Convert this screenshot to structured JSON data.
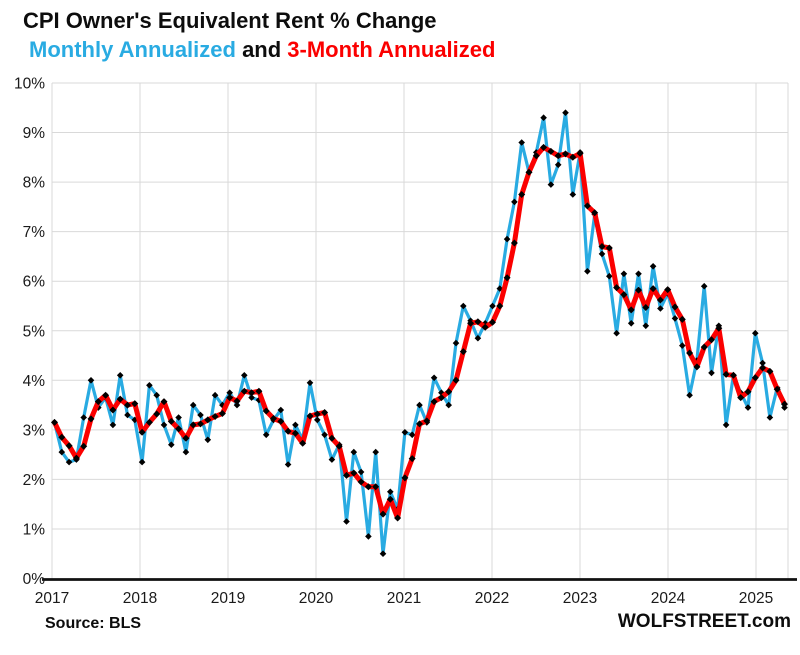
{
  "title": "CPI Owner's Equivalent Rent % Change",
  "subtitle": {
    "monthly_label": "Monthly Annualized",
    "connector": " and ",
    "three_month_label": "3-Month Annualized"
  },
  "footer": {
    "source": "Source: BLS",
    "watermark": "WOLFSTREET.com"
  },
  "colors": {
    "monthly_line": "#29ABE2",
    "three_month_line": "#FB0000",
    "marker": "#000000",
    "grid": "#D9D9D9",
    "axis": "#111111",
    "tick_text": "#1a1a1a"
  },
  "chart_data": {
    "type": "line",
    "title": "CPI Owner's Equivalent Rent % Change",
    "subtitle": "Monthly Annualized and 3-Month Annualized",
    "x_start": "2017-01",
    "x_end": "2025-05",
    "x_frequency": "monthly",
    "x_tick_labels": [
      "2017",
      "2018",
      "2019",
      "2020",
      "2021",
      "2022",
      "2023",
      "2024",
      "2025"
    ],
    "y_tick_labels": [
      "0%",
      "1%",
      "2%",
      "3%",
      "4%",
      "5%",
      "6%",
      "7%",
      "8%",
      "9%",
      "10%"
    ],
    "ylim": [
      0,
      10
    ],
    "grid": true,
    "legend_position": "in-subtitle",
    "series": [
      {
        "name": "Monthly Annualized",
        "color": "#29ABE2",
        "values": [
          3.15,
          2.55,
          2.35,
          2.4,
          3.25,
          4.0,
          3.45,
          3.65,
          3.1,
          4.1,
          3.3,
          3.2,
          2.35,
          3.9,
          3.7,
          3.1,
          2.7,
          3.25,
          2.55,
          3.5,
          3.3,
          2.8,
          3.7,
          3.5,
          3.75,
          3.5,
          4.1,
          3.65,
          3.6,
          2.9,
          3.2,
          3.4,
          2.3,
          3.1,
          2.8,
          3.95,
          3.2,
          2.9,
          2.4,
          2.7,
          1.15,
          2.55,
          2.15,
          0.85,
          2.55,
          0.5,
          1.75,
          1.4,
          2.95,
          2.9,
          3.5,
          3.15,
          4.05,
          3.75,
          3.5,
          4.75,
          5.5,
          5.2,
          4.85,
          5.15,
          5.5,
          5.85,
          6.85,
          7.6,
          8.8,
          8.2,
          8.6,
          9.3,
          7.95,
          8.35,
          9.4,
          7.75,
          8.6,
          6.2,
          7.35,
          6.55,
          6.1,
          4.95,
          6.15,
          5.15,
          6.15,
          5.1,
          6.3,
          5.45,
          5.75,
          5.25,
          4.7,
          3.7,
          4.4,
          5.9,
          4.15,
          5.1,
          3.1,
          4.1,
          3.75,
          3.45,
          4.95,
          4.35,
          3.25,
          3.85,
          3.45
        ]
      },
      {
        "name": "3-Month Annualized",
        "color": "#FB0000",
        "values": [
          3.15,
          2.85,
          2.68,
          2.43,
          2.67,
          3.22,
          3.57,
          3.7,
          3.4,
          3.62,
          3.5,
          3.53,
          2.95,
          3.15,
          3.32,
          3.57,
          3.17,
          3.02,
          2.83,
          3.1,
          3.12,
          3.2,
          3.27,
          3.33,
          3.65,
          3.58,
          3.78,
          3.75,
          3.78,
          3.38,
          3.23,
          3.17,
          2.97,
          2.93,
          2.73,
          3.28,
          3.32,
          3.35,
          2.83,
          2.67,
          2.08,
          2.13,
          1.95,
          1.85,
          1.85,
          1.3,
          1.6,
          1.22,
          2.03,
          2.42,
          3.12,
          3.18,
          3.57,
          3.65,
          3.77,
          4.0,
          4.58,
          5.15,
          5.18,
          5.07,
          5.17,
          5.5,
          6.07,
          6.77,
          7.75,
          8.2,
          8.53,
          8.7,
          8.62,
          8.53,
          8.57,
          8.5,
          8.58,
          7.52,
          7.38,
          6.7,
          6.67,
          5.87,
          5.73,
          5.42,
          5.82,
          5.47,
          5.85,
          5.62,
          5.83,
          5.48,
          5.23,
          4.55,
          4.27,
          4.67,
          4.82,
          5.05,
          4.12,
          4.1,
          3.65,
          3.77,
          4.05,
          4.25,
          4.18,
          3.82,
          3.52
        ]
      }
    ]
  }
}
